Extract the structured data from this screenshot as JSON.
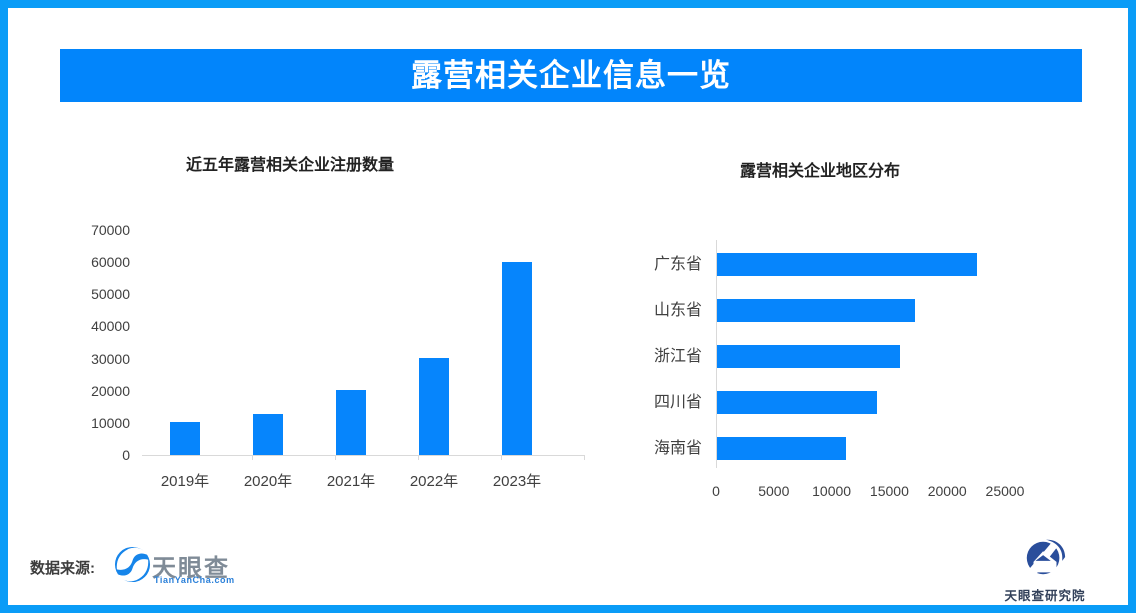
{
  "banner": {
    "title": "露营相关企业信息一览"
  },
  "colors": {
    "banner_bg": "#0285fb",
    "bar": "#0685fc",
    "frame_border": "#0a9cf7",
    "axis_line": "#d9d9d9",
    "tick_label": "#404040",
    "banner_text": "#ffffff",
    "tianyancha_gray": "#7f8b97",
    "tianyancha_blue": "#2b80d9",
    "institute_navy": "#2a4e9b"
  },
  "chart_data": [
    {
      "type": "bar",
      "orientation": "vertical",
      "title": "近五年露营相关企业注册数量",
      "categories": [
        "2019年",
        "2020年",
        "2021年",
        "2022年",
        "2023年"
      ],
      "values": [
        10200,
        12700,
        20300,
        30300,
        60000
      ],
      "xlabel": "",
      "ylabel": "",
      "ylim": [
        0,
        70000
      ],
      "yticks": [
        0,
        10000,
        20000,
        30000,
        40000,
        50000,
        60000,
        70000
      ],
      "grid": false,
      "legend": false
    },
    {
      "type": "bar",
      "orientation": "horizontal",
      "title": "露营相关企业地区分布",
      "categories": [
        "广东省",
        "山东省",
        "浙江省",
        "四川省",
        "海南省"
      ],
      "values": [
        22500,
        17100,
        15800,
        13800,
        11200
      ],
      "xlabel": "",
      "ylabel": "",
      "xlim": [
        0,
        25000
      ],
      "xticks": [
        0,
        5000,
        10000,
        15000,
        20000,
        25000
      ],
      "grid": false,
      "legend": false
    }
  ],
  "footer": {
    "source_label": "数据来源:",
    "tianyancha": {
      "name": "天眼查",
      "subtext": "TianYanCha.com",
      "icon": "eye-swirl-icon"
    },
    "institute_name": "天眼查研究院",
    "institute_icon": "mountain-circle-icon"
  }
}
